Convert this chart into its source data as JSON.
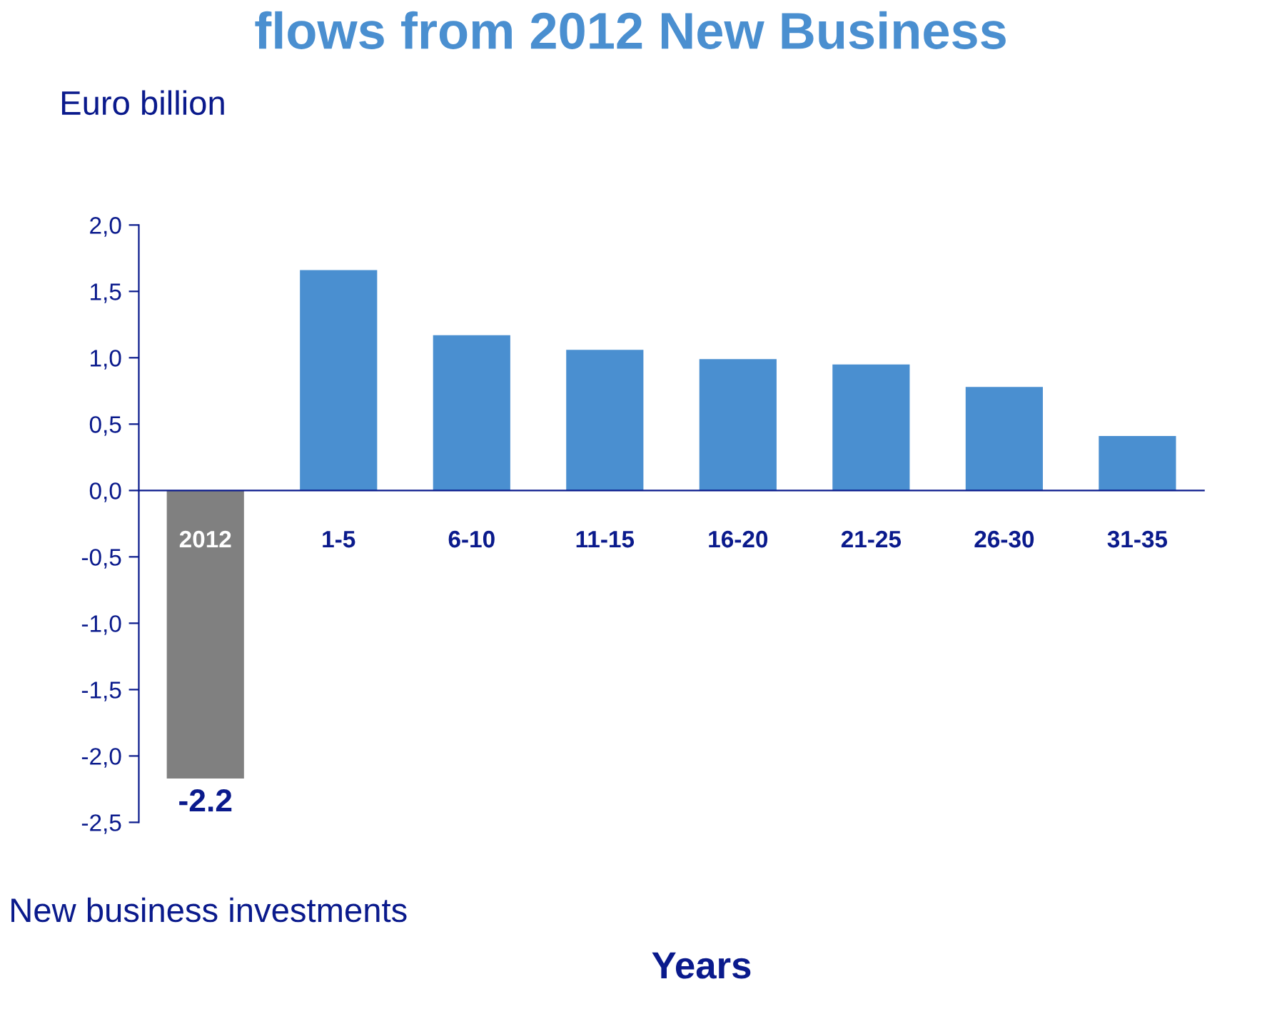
{
  "chart_data": {
    "type": "bar",
    "title": "flows from 2012 New Business",
    "ylabel": "Euro billion",
    "xlabel": "Years",
    "categories": [
      "2012",
      "1-5",
      "6-10",
      "11-15",
      "16-20",
      "21-25",
      "26-30",
      "31-35"
    ],
    "values": [
      -2.17,
      1.66,
      1.17,
      1.06,
      0.99,
      0.95,
      0.78,
      0.41
    ],
    "colors": [
      "#808080",
      "#4a8fd0",
      "#4a8fd0",
      "#4a8fd0",
      "#4a8fd0",
      "#4a8fd0",
      "#4a8fd0",
      "#4a8fd0"
    ],
    "value_labels": [
      "-2.2",
      null,
      null,
      null,
      null,
      null,
      null,
      null
    ],
    "ylim": [
      -2.5,
      2.0
    ],
    "yticks": [
      {
        "value": -2.5,
        "label": "-2,5"
      },
      {
        "value": -2.0,
        "label": "-2,0"
      },
      {
        "value": -1.5,
        "label": "-1,5"
      },
      {
        "value": -1.0,
        "label": "-1,0"
      },
      {
        "value": -0.5,
        "label": "-0,5"
      },
      {
        "value": 0.0,
        "label": "0,0"
      },
      {
        "value": 0.5,
        "label": "0,5"
      },
      {
        "value": 1.0,
        "label": "1,0"
      },
      {
        "value": 1.5,
        "label": "1,5"
      },
      {
        "value": 2.0,
        "label": "2,0"
      }
    ],
    "annotations": [
      "New business investments"
    ],
    "grid": false,
    "legend": false
  }
}
